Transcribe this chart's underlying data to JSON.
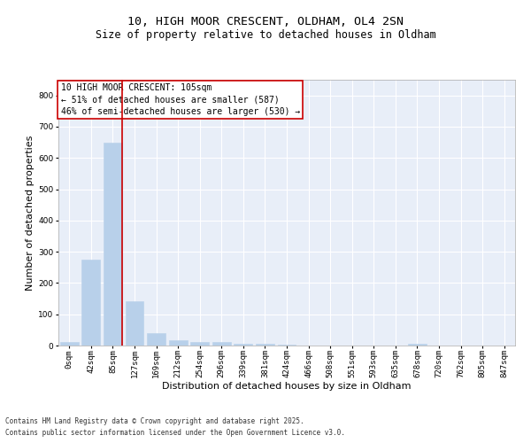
{
  "title1": "10, HIGH MOOR CRESCENT, OLDHAM, OL4 2SN",
  "title2": "Size of property relative to detached houses in Oldham",
  "xlabel": "Distribution of detached houses by size in Oldham",
  "ylabel": "Number of detached properties",
  "annotation_line1": "10 HIGH MOOR CRESCENT: 105sqm",
  "annotation_line2": "← 51% of detached houses are smaller (587)",
  "annotation_line3": "46% of semi-detached houses are larger (530) →",
  "footer1": "Contains HM Land Registry data © Crown copyright and database right 2025.",
  "footer2": "Contains public sector information licensed under the Open Government Licence v3.0.",
  "bar_labels": [
    "0sqm",
    "42sqm",
    "85sqm",
    "127sqm",
    "169sqm",
    "212sqm",
    "254sqm",
    "296sqm",
    "339sqm",
    "381sqm",
    "424sqm",
    "466sqm",
    "508sqm",
    "551sqm",
    "593sqm",
    "635sqm",
    "678sqm",
    "720sqm",
    "762sqm",
    "805sqm",
    "847sqm"
  ],
  "bar_values": [
    10,
    275,
    650,
    142,
    40,
    18,
    12,
    10,
    7,
    5,
    4,
    0,
    0,
    0,
    0,
    0,
    5,
    0,
    0,
    0,
    0
  ],
  "bar_color": "#b8d0ea",
  "bar_edge_color": "#b8d0ea",
  "red_line_x": 2.42,
  "vline_color": "#cc0000",
  "ylim": [
    0,
    850
  ],
  "yticks": [
    0,
    100,
    200,
    300,
    400,
    500,
    600,
    700,
    800
  ],
  "background_color": "#e8eef8",
  "grid_color": "#ffffff",
  "title_fontsize": 9.5,
  "subtitle_fontsize": 8.5,
  "axis_label_fontsize": 8,
  "tick_fontsize": 6.5,
  "annotation_fontsize": 7,
  "footer_fontsize": 5.5
}
